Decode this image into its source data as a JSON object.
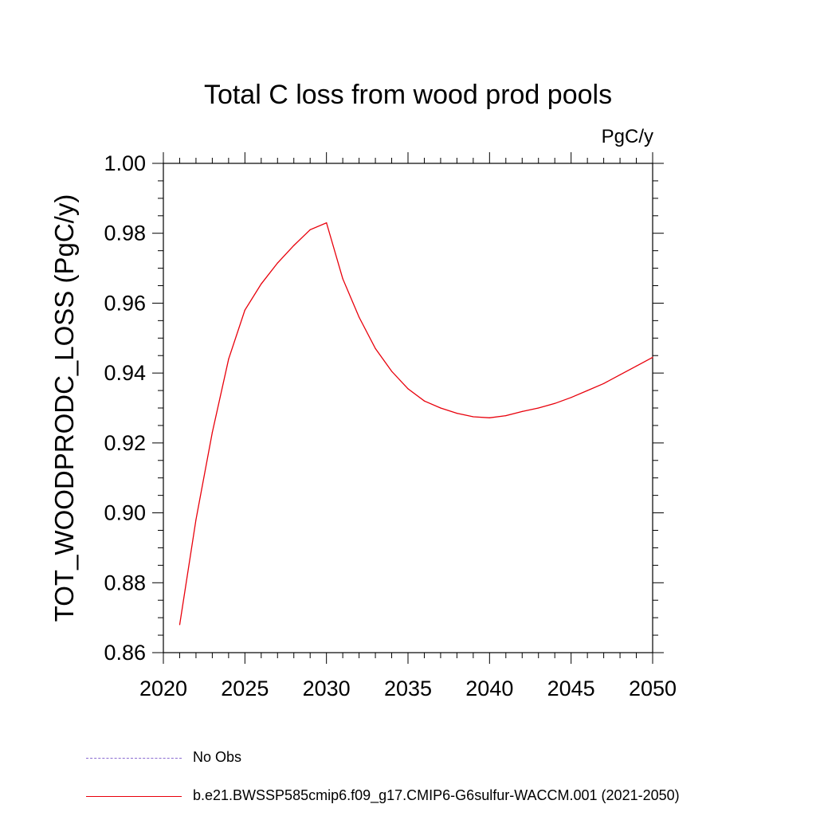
{
  "chart_data": {
    "type": "line",
    "title": "Total C loss from wood prod pools",
    "units_label": "PgC/y",
    "ylabel": "TOT_WOODPRODC_LOSS  (PgC/y)",
    "xlabel": "",
    "xlim": [
      2020,
      2050
    ],
    "ylim": [
      0.86,
      1.0
    ],
    "x_ticks": [
      2020,
      2025,
      2030,
      2035,
      2040,
      2045,
      2050
    ],
    "y_ticks": [
      "0.86",
      "0.88",
      "0.90",
      "0.92",
      "0.94",
      "0.96",
      "0.98",
      "1.00"
    ],
    "grid": false,
    "series": [
      {
        "name": "b.e21.BWSSP585cmip6.f09_g17.CMIP6-G6sulfur-WACCM.001 (2021-2050)",
        "color": "#e8000b",
        "x": [
          2021,
          2022,
          2023,
          2024,
          2025,
          2026,
          2027,
          2028,
          2029,
          2030,
          2031,
          2032,
          2033,
          2034,
          2035,
          2036,
          2037,
          2038,
          2039,
          2040,
          2041,
          2042,
          2043,
          2044,
          2045,
          2046,
          2047,
          2048,
          2049,
          2050
        ],
        "y": [
          0.868,
          0.898,
          0.923,
          0.944,
          0.958,
          0.9655,
          0.9715,
          0.9765,
          0.981,
          0.983,
          0.967,
          0.956,
          0.947,
          0.9405,
          0.9355,
          0.932,
          0.93,
          0.9285,
          0.9275,
          0.9272,
          0.9278,
          0.929,
          0.93,
          0.9313,
          0.933,
          0.935,
          0.937,
          0.9395,
          0.942,
          0.9445
        ]
      }
    ],
    "legend": [
      {
        "label": "No Obs",
        "style": "dashed",
        "color": "#8a6bd1"
      },
      {
        "label": "b.e21.BWSSP585cmip6.f09_g17.CMIP6-G6sulfur-WACCM.001 (2021-2050)",
        "style": "solid",
        "color": "#e8000b"
      }
    ]
  }
}
